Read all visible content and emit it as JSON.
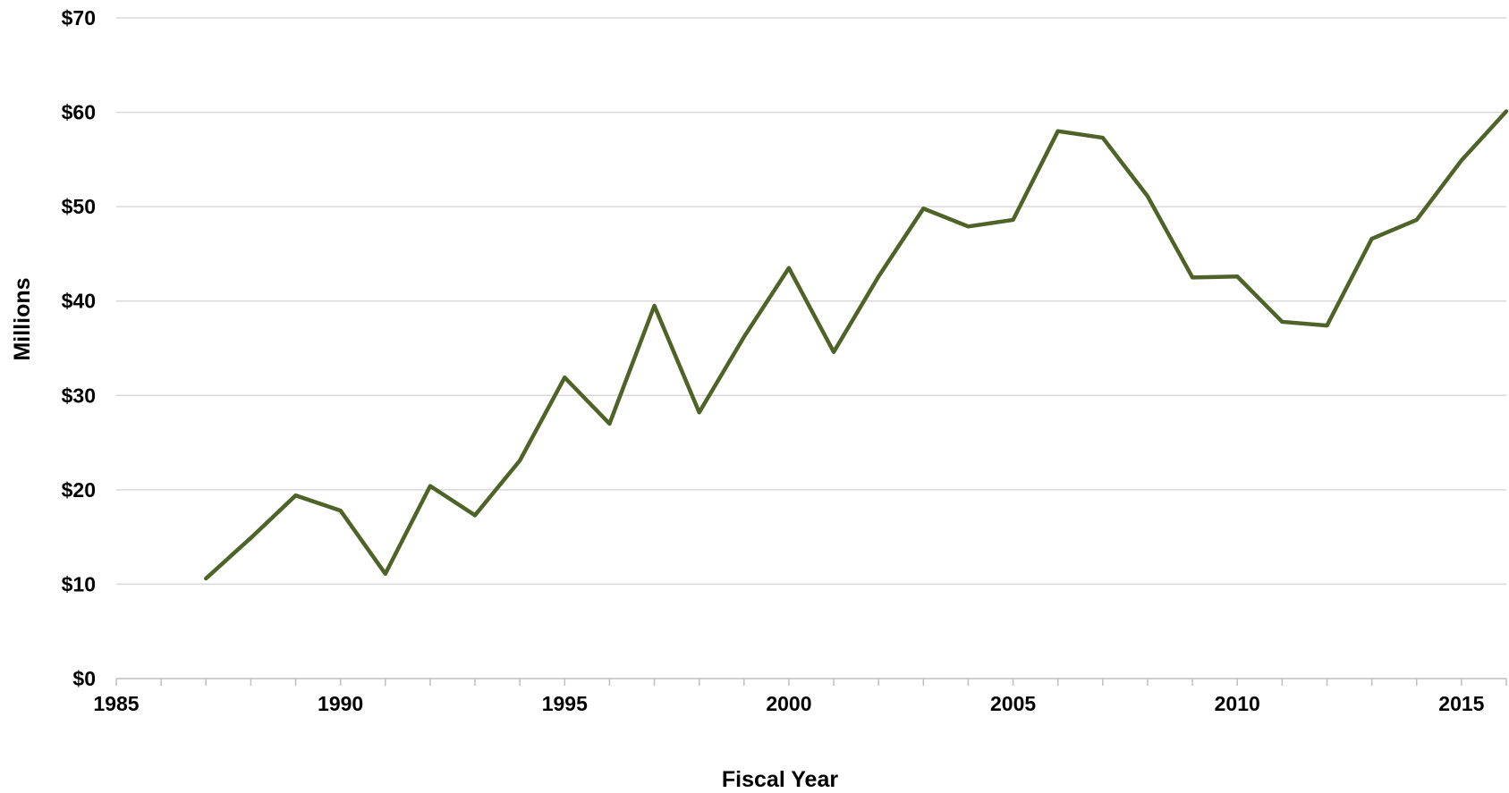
{
  "chart_data": {
    "type": "line",
    "title": "",
    "xlabel": "Fiscal Year",
    "ylabel": "Millions",
    "xlim": [
      1985,
      2016
    ],
    "ylim": [
      0,
      70
    ],
    "x_ticks": [
      1985,
      1990,
      1995,
      2000,
      2005,
      2010,
      2015
    ],
    "x_tick_labels": [
      "1985",
      "1990",
      "1995",
      "2000",
      "2005",
      "2010",
      "2015"
    ],
    "y_ticks": [
      0,
      10,
      20,
      30,
      40,
      50,
      60,
      70
    ],
    "y_tick_labels": [
      "$0",
      "$10",
      "$20",
      "$30",
      "$40",
      "$50",
      "$60",
      "$70"
    ],
    "grid": true,
    "legend": false,
    "line_color": "#4f6228",
    "series": [
      {
        "x": [
          1987,
          1988,
          1989,
          1990,
          1991,
          1992,
          1993,
          1994,
          1995,
          1996,
          1997,
          1998,
          1999,
          2000,
          2001,
          2002,
          2003,
          2004,
          2005,
          2006,
          2007,
          2008,
          2009,
          2010,
          2011,
          2012,
          2013,
          2014,
          2015,
          2016
        ],
        "values": [
          10.6,
          14.9,
          19.4,
          17.8,
          11.1,
          20.4,
          17.3,
          23.1,
          31.9,
          27.0,
          39.5,
          28.2,
          36.2,
          43.5,
          34.6,
          42.6,
          49.8,
          47.9,
          48.6,
          58.0,
          57.3,
          51.1,
          42.5,
          42.6,
          37.8,
          37.4,
          46.6,
          48.6,
          54.9,
          60.1
        ]
      }
    ]
  }
}
